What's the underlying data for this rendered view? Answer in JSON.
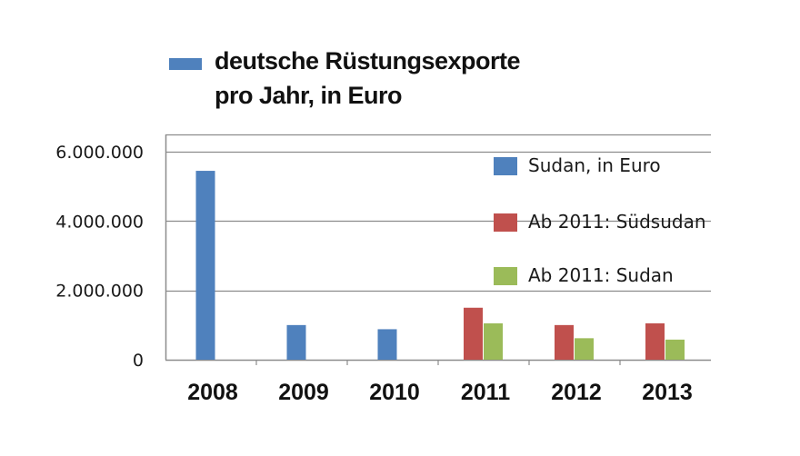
{
  "header": {
    "swatch_color": "#4f81bd",
    "title_line1": "deutsche Rüstungsexporte",
    "title_line2": "pro Jahr, in Euro"
  },
  "chart_data": {
    "type": "bar",
    "categories": [
      "2008",
      "2009",
      "2010",
      "2011",
      "2012",
      "2013"
    ],
    "ylim": [
      0,
      6500000
    ],
    "yticks": [
      0,
      2000000,
      4000000,
      6000000
    ],
    "ytick_labels": [
      "0",
      "2.000.000",
      "4.000.000",
      "6.000.000"
    ],
    "gridlines": true,
    "legend_position": "right, inside plot",
    "series": [
      {
        "name": "Sudan, in Euro",
        "color": "#4f81bd",
        "values": [
          5450000,
          1000000,
          880000,
          null,
          null,
          null
        ]
      },
      {
        "name": "Ab 2011: Südsudan",
        "color": "#c0504d",
        "values": [
          null,
          null,
          null,
          1500000,
          1000000,
          1050000
        ]
      },
      {
        "name": "Ab 2011: Sudan",
        "color": "#9bbb59",
        "values": [
          null,
          null,
          null,
          1050000,
          620000,
          580000
        ]
      }
    ]
  }
}
